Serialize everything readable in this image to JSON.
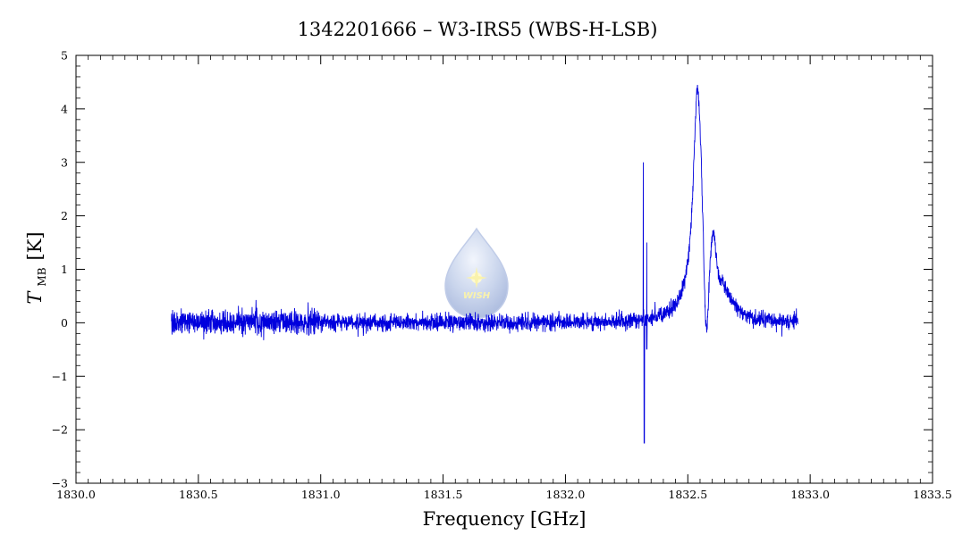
{
  "chart_data": {
    "type": "line",
    "title": "1342201666 – W3-IRS5 (WBS-H-LSB)",
    "xlabel": "Frequency [GHz]",
    "ylabel": {
      "main": "T",
      "sub": "MB",
      "unit": "[K]"
    },
    "xlim": [
      1830.0,
      1833.5
    ],
    "ylim": [
      -3,
      5
    ],
    "xticks": [
      1830.0,
      1830.5,
      1831.0,
      1831.5,
      1832.0,
      1832.5,
      1833.0,
      1833.5
    ],
    "xtick_labels": [
      "1830.0",
      "1830.5",
      "1831.0",
      "1831.5",
      "1832.0",
      "1832.5",
      "1833.0",
      "1833.5"
    ],
    "yticks": [
      -3,
      -2,
      -1,
      0,
      1,
      2,
      3,
      4,
      5
    ],
    "ytick_labels": [
      "−3",
      "−2",
      "−1",
      "0",
      "1",
      "2",
      "3",
      "4",
      "5"
    ],
    "grid": false,
    "series": [
      {
        "color": "#0000dd",
        "x_range": [
          1830.39,
          1832.95
        ],
        "noise_rms": 0.09,
        "features": [
          {
            "x": 1832.318,
            "y": 3.0
          },
          {
            "x": 1832.322,
            "y": -2.25
          },
          {
            "x": 1832.332,
            "y": 1.5
          },
          {
            "x": 1832.54,
            "y": 4.25
          },
          {
            "x": 1832.58,
            "y": 1.6
          },
          {
            "x": 1832.605,
            "y": 2.1
          },
          {
            "x": 1832.65,
            "y": 0.5
          },
          {
            "x": 1832.75,
            "y": 0.0
          }
        ]
      }
    ]
  },
  "watermark": {
    "text": "WISH",
    "color": "#9fb4de",
    "star_color": "#f5e96a"
  }
}
